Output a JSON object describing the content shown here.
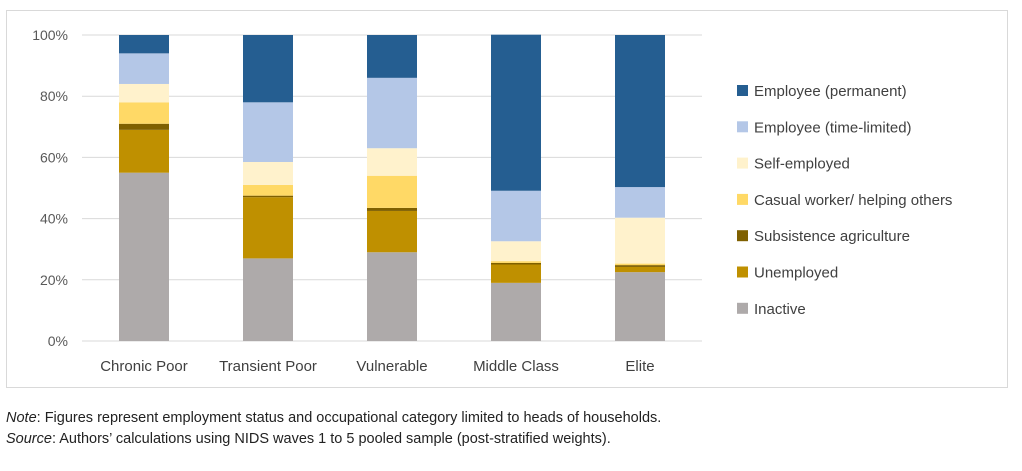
{
  "chart_data": {
    "type": "bar",
    "stacked": true,
    "categories": [
      "Chronic Poor",
      "Transient Poor",
      "Vulnerable",
      "Middle Class",
      "Elite"
    ],
    "ylim": [
      0,
      100
    ],
    "yticks": [
      "0%",
      "20%",
      "40%",
      "60%",
      "80%",
      "100%"
    ],
    "grid": true,
    "legend_position": "right",
    "series": [
      {
        "name": "Inactive",
        "color": "#aeaaaa",
        "values": [
          55,
          27,
          29,
          19,
          22.5
        ]
      },
      {
        "name": "Unemployed",
        "color": "#bf9000",
        "values": [
          14,
          20,
          13.5,
          6,
          1.7
        ]
      },
      {
        "name": "Subsistence agriculture",
        "color": "#7f6000",
        "values": [
          2,
          0.5,
          1,
          0.5,
          0.6
        ]
      },
      {
        "name": "Casual worker/ helping others",
        "color": "#ffd966",
        "values": [
          7,
          3.5,
          10.5,
          0.6,
          0.5
        ]
      },
      {
        "name": "Self-employed",
        "color": "#fff2cc",
        "values": [
          6,
          7.5,
          9,
          6.5,
          15
        ]
      },
      {
        "name": "Employee (time-limited)",
        "color": "#b4c7e7",
        "values": [
          10,
          19.5,
          23,
          16.5,
          10
        ]
      },
      {
        "name": "Employee (permanent)",
        "color": "#255e91",
        "values": [
          6,
          22,
          14,
          51,
          49.7
        ]
      }
    ]
  },
  "notes": {
    "note_label": "Note",
    "note_text": ": Figures represent employment status and occupational category limited to heads of households.",
    "source_label": "Source",
    "source_text": ": Authors’ calculations using NIDS waves 1 to 5 pooled sample (post-stratified weights)."
  }
}
